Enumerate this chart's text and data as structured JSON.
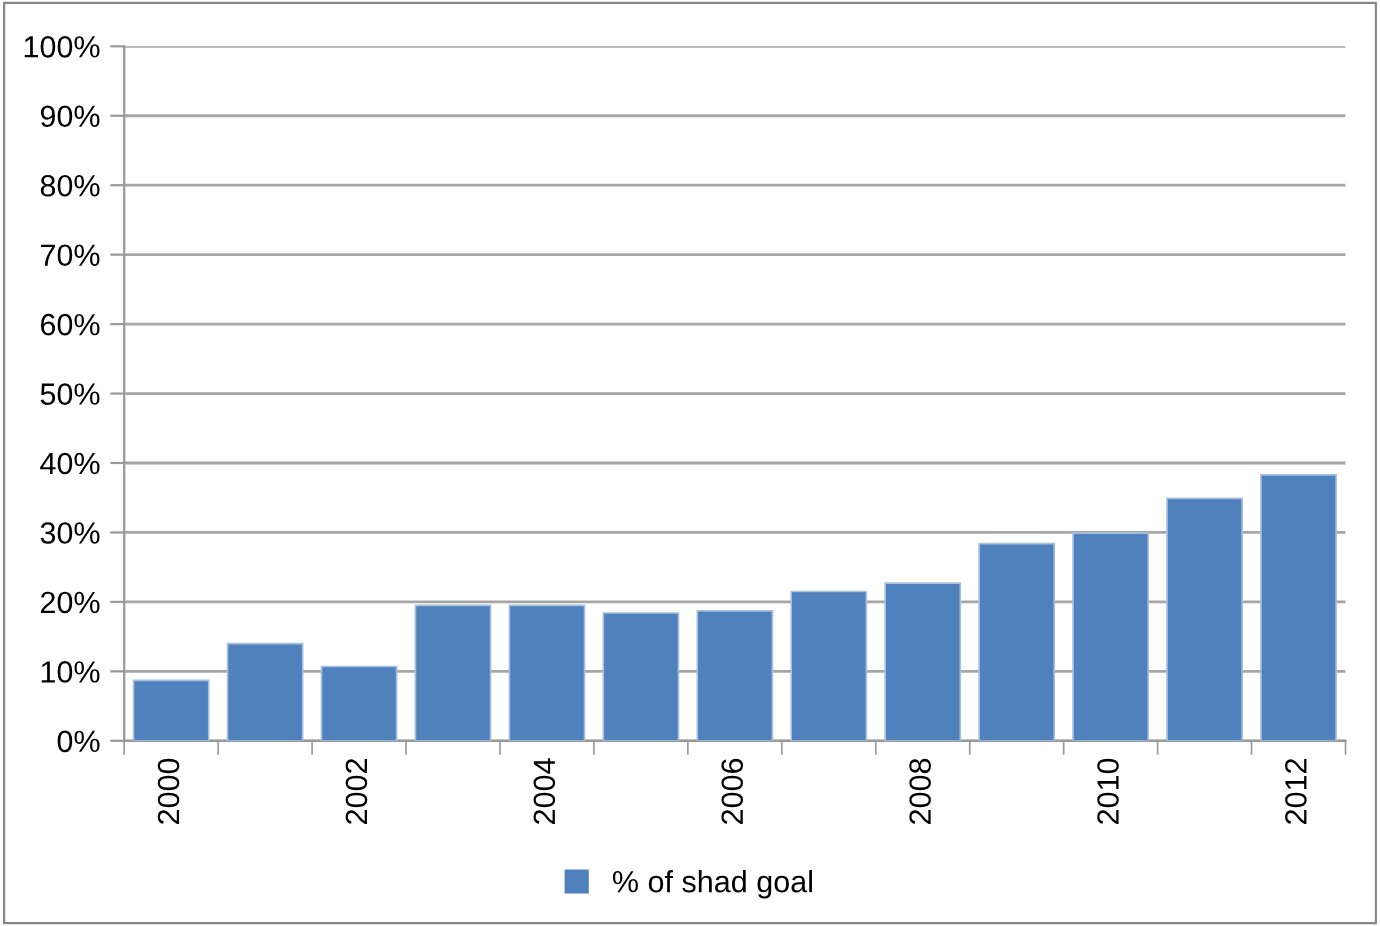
{
  "chart_data": {
    "type": "bar",
    "categories": [
      "2000",
      null,
      "2002",
      null,
      "2004",
      null,
      "2006",
      null,
      "2008",
      null,
      "2010",
      null,
      "2012"
    ],
    "series": [
      {
        "name": "% of shad goal",
        "color": "#4f81bd",
        "values": [
          8.7,
          14.0,
          10.7,
          19.5,
          19.5,
          18.4,
          18.7,
          21.5,
          22.7,
          28.4,
          29.9,
          34.9,
          38.3
        ]
      }
    ],
    "ylim": [
      0,
      100
    ],
    "yticks": [
      {
        "value": 0,
        "label": "0%"
      },
      {
        "value": 10,
        "label": "10%"
      },
      {
        "value": 20,
        "label": "20%"
      },
      {
        "value": 30,
        "label": "30%"
      },
      {
        "value": 40,
        "label": "40%"
      },
      {
        "value": 50,
        "label": "50%"
      },
      {
        "value": 60,
        "label": "60%"
      },
      {
        "value": 70,
        "label": "70%"
      },
      {
        "value": 80,
        "label": "80%"
      },
      {
        "value": 90,
        "label": "90%"
      },
      {
        "value": 100,
        "label": "100%"
      }
    ],
    "grid": "y",
    "legend": "bottom"
  }
}
